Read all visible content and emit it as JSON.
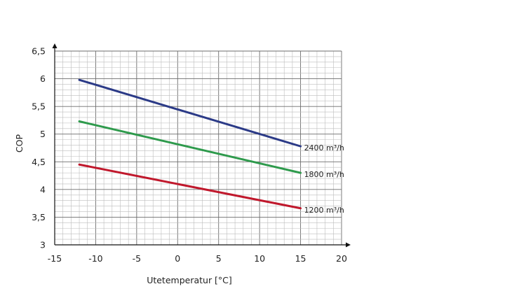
{
  "chart_data": {
    "type": "line",
    "xlabel": "Utetemperatur [°C]",
    "ylabel": "COP",
    "xlim": [
      -15,
      20
    ],
    "ylim": [
      3,
      6.5
    ],
    "x_ticks": [
      "-15",
      "-10",
      "-5",
      "0",
      "5",
      "10",
      "15",
      "20"
    ],
    "y_ticks": [
      "3",
      "3,5",
      "4",
      "4,5",
      "5",
      "5,5",
      "6",
      "6,5"
    ],
    "grid": true,
    "series": [
      {
        "name": "2400 m³/h",
        "color": "#2b3a87",
        "x": [
          -12,
          15
        ],
        "y": [
          5.98,
          4.78
        ]
      },
      {
        "name": "1800 m³/h",
        "color": "#2e9a4c",
        "x": [
          -12,
          15
        ],
        "y": [
          5.23,
          4.3
        ]
      },
      {
        "name": "1200 m³/h",
        "color": "#c0182c",
        "x": [
          -12,
          15
        ],
        "y": [
          4.45,
          3.66
        ]
      }
    ]
  }
}
